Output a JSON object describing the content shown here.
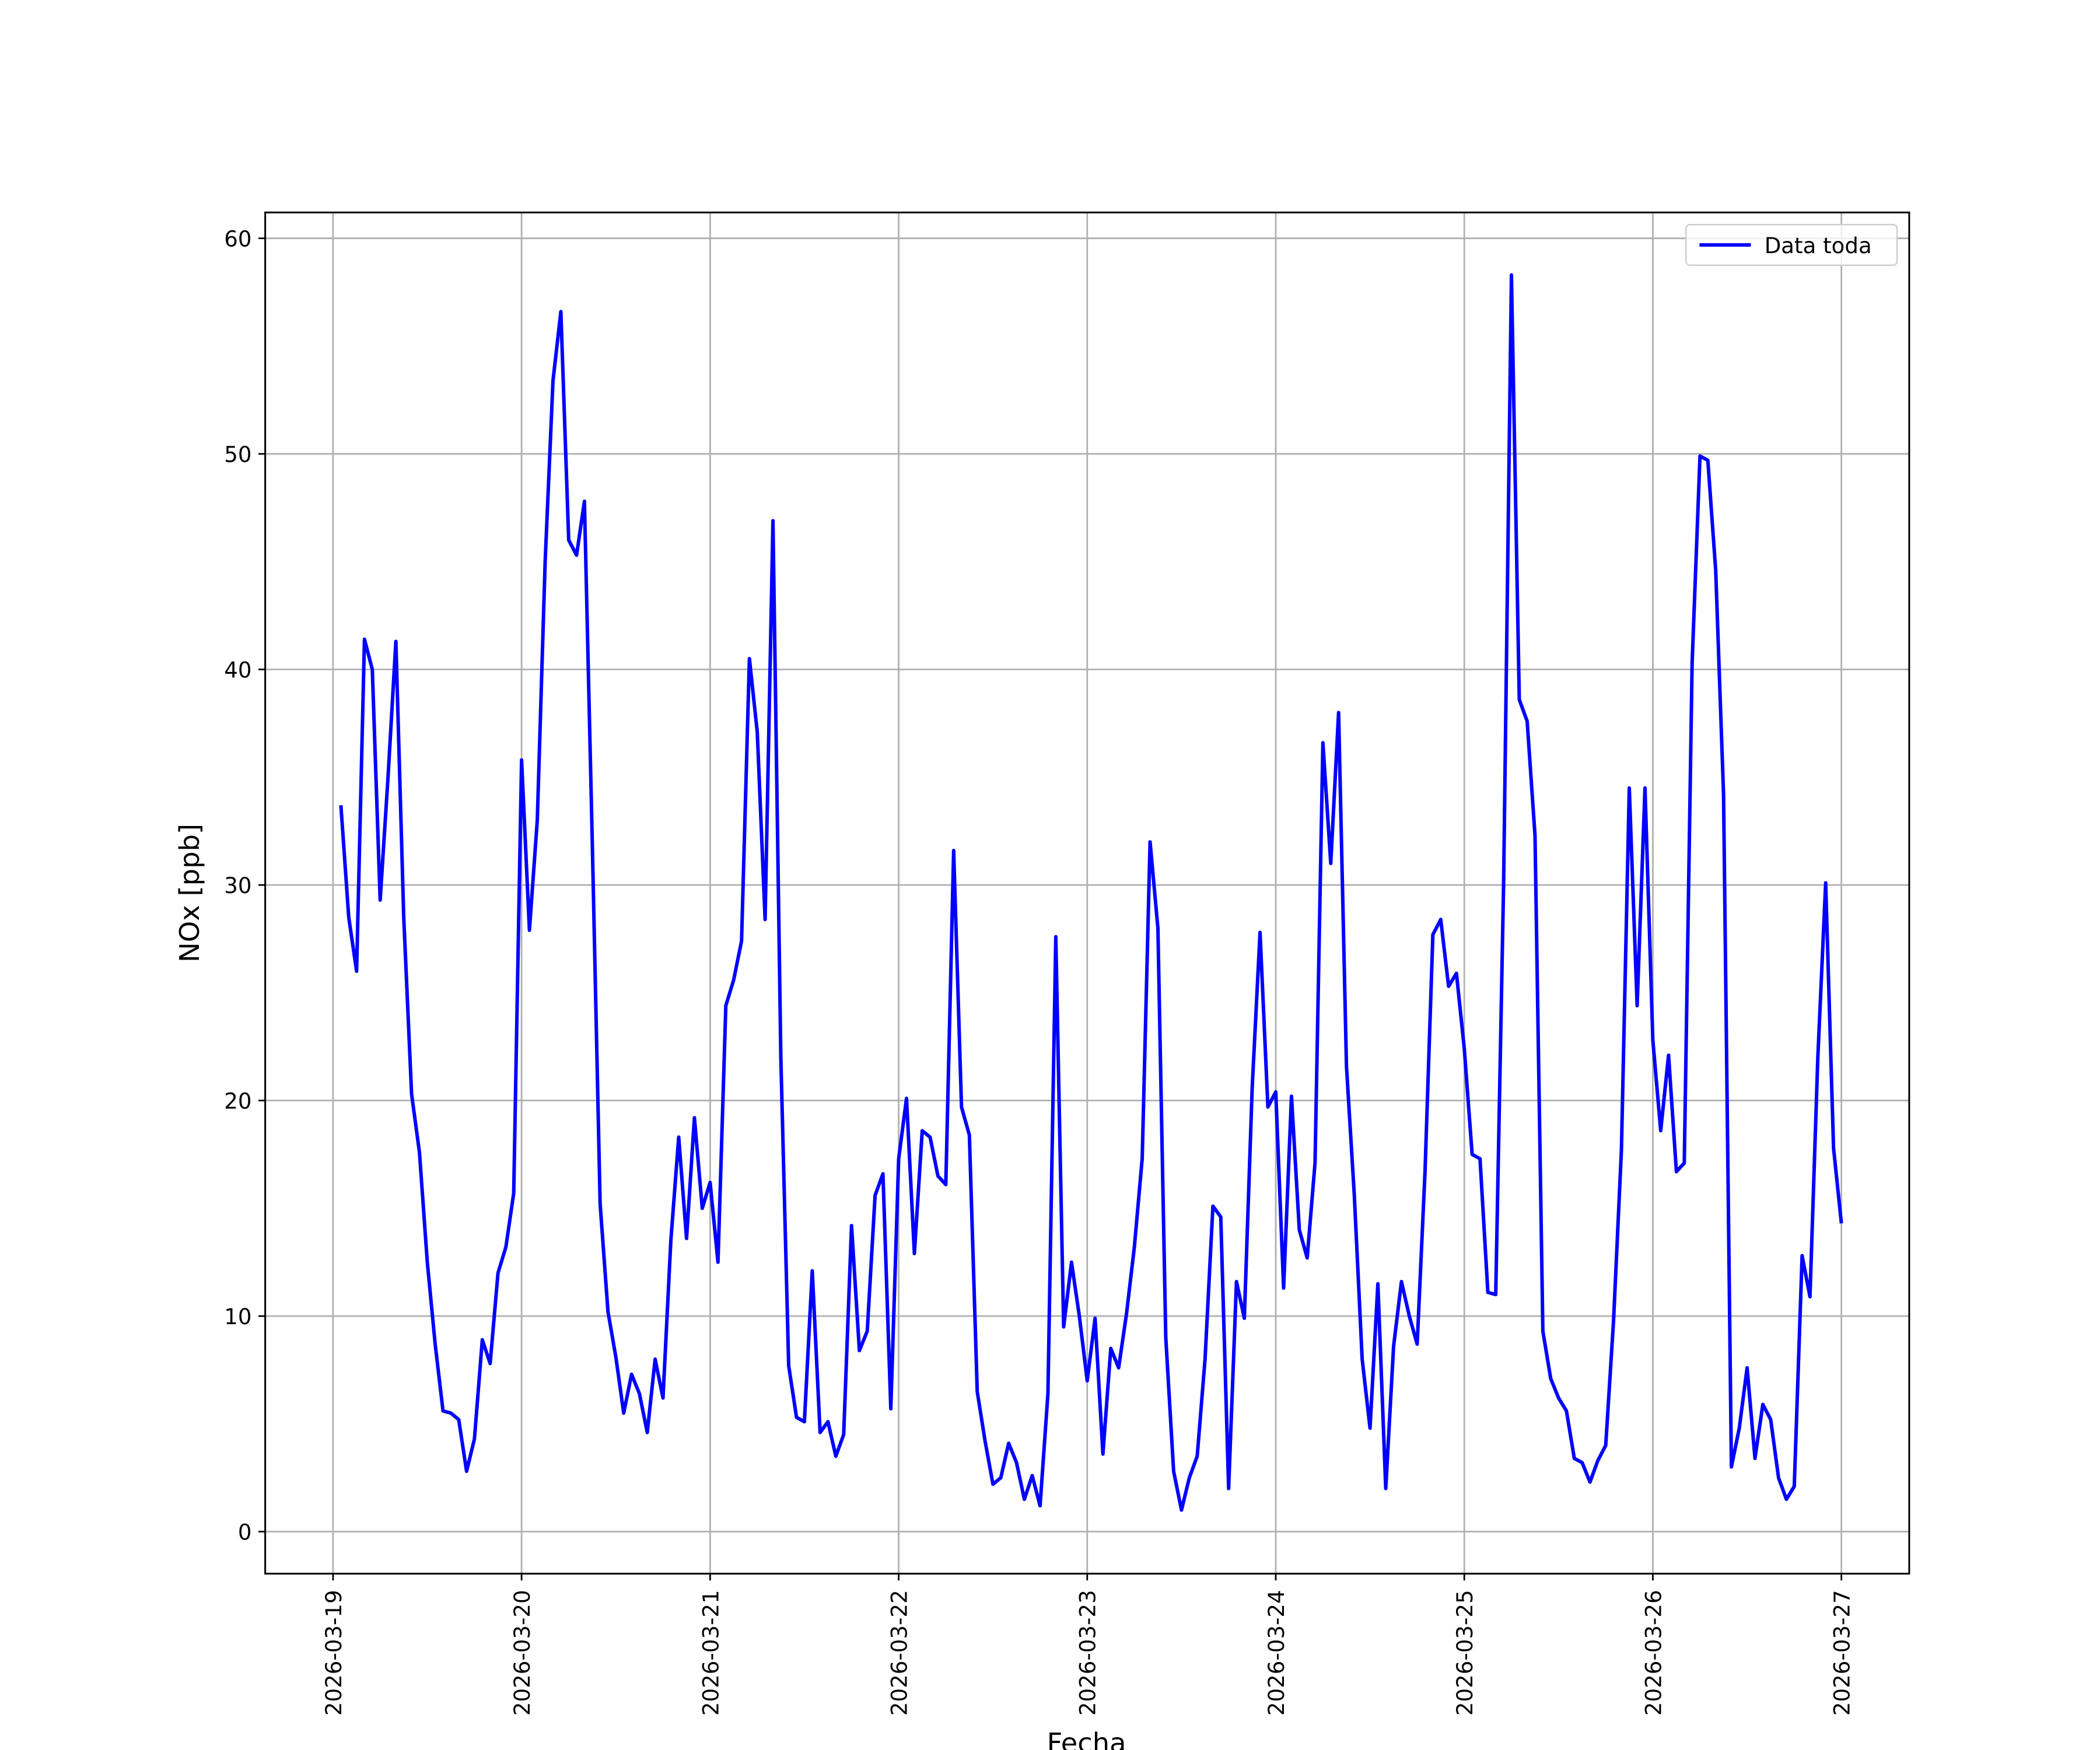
{
  "chart_data": {
    "type": "line",
    "xlabel": "Fecha",
    "ylabel": "NOx [ppb]",
    "x": [
      "2026-03-19 01:00",
      "2026-03-19 02:00",
      "2026-03-19 03:00",
      "2026-03-19 04:00",
      "2026-03-19 05:00",
      "2026-03-19 06:00",
      "2026-03-19 07:00",
      "2026-03-19 08:00",
      "2026-03-19 09:00",
      "2026-03-19 10:00",
      "2026-03-19 11:00",
      "2026-03-19 12:00",
      "2026-03-19 13:00",
      "2026-03-19 14:00",
      "2026-03-19 15:00",
      "2026-03-19 16:00",
      "2026-03-19 17:00",
      "2026-03-19 18:00",
      "2026-03-19 19:00",
      "2026-03-19 20:00",
      "2026-03-19 21:00",
      "2026-03-19 22:00",
      "2026-03-19 23:00",
      "2026-03-20 00:00",
      "2026-03-20 01:00",
      "2026-03-20 02:00",
      "2026-03-20 03:00",
      "2026-03-20 04:00",
      "2026-03-20 05:00",
      "2026-03-20 06:00",
      "2026-03-20 07:00",
      "2026-03-20 08:00",
      "2026-03-20 09:00",
      "2026-03-20 10:00",
      "2026-03-20 11:00",
      "2026-03-20 12:00",
      "2026-03-20 13:00",
      "2026-03-20 14:00",
      "2026-03-20 15:00",
      "2026-03-20 16:00",
      "2026-03-20 17:00",
      "2026-03-20 18:00",
      "2026-03-20 19:00",
      "2026-03-20 20:00",
      "2026-03-20 21:00",
      "2026-03-20 22:00",
      "2026-03-20 23:00",
      "2026-03-21 00:00",
      "2026-03-21 01:00",
      "2026-03-21 02:00",
      "2026-03-21 03:00",
      "2026-03-21 04:00",
      "2026-03-21 05:00",
      "2026-03-21 06:00",
      "2026-03-21 07:00",
      "2026-03-21 08:00",
      "2026-03-21 09:00",
      "2026-03-21 10:00",
      "2026-03-21 11:00",
      "2026-03-21 12:00",
      "2026-03-21 13:00",
      "2026-03-21 14:00",
      "2026-03-21 15:00",
      "2026-03-21 16:00",
      "2026-03-21 17:00",
      "2026-03-21 18:00",
      "2026-03-21 19:00",
      "2026-03-21 20:00",
      "2026-03-21 21:00",
      "2026-03-21 22:00",
      "2026-03-21 23:00",
      "2026-03-22 00:00",
      "2026-03-22 01:00",
      "2026-03-22 02:00",
      "2026-03-22 03:00",
      "2026-03-22 04:00",
      "2026-03-22 05:00",
      "2026-03-22 06:00",
      "2026-03-22 07:00",
      "2026-03-22 08:00",
      "2026-03-22 09:00",
      "2026-03-22 10:00",
      "2026-03-22 11:00",
      "2026-03-22 12:00",
      "2026-03-22 13:00",
      "2026-03-22 14:00",
      "2026-03-22 15:00",
      "2026-03-22 16:00",
      "2026-03-22 17:00",
      "2026-03-22 18:00",
      "2026-03-22 19:00",
      "2026-03-22 20:00",
      "2026-03-22 21:00",
      "2026-03-22 22:00",
      "2026-03-22 23:00",
      "2026-03-23 00:00",
      "2026-03-23 01:00",
      "2026-03-23 02:00",
      "2026-03-23 03:00",
      "2026-03-23 04:00",
      "2026-03-23 05:00",
      "2026-03-23 06:00",
      "2026-03-23 07:00",
      "2026-03-23 08:00",
      "2026-03-23 09:00",
      "2026-03-23 10:00",
      "2026-03-23 11:00",
      "2026-03-23 12:00",
      "2026-03-23 13:00",
      "2026-03-23 14:00",
      "2026-03-23 15:00",
      "2026-03-23 16:00",
      "2026-03-23 17:00",
      "2026-03-23 18:00",
      "2026-03-23 19:00",
      "2026-03-23 20:00",
      "2026-03-23 21:00",
      "2026-03-23 22:00",
      "2026-03-23 23:00",
      "2026-03-24 00:00",
      "2026-03-24 01:00",
      "2026-03-24 02:00",
      "2026-03-24 03:00",
      "2026-03-24 04:00",
      "2026-03-24 05:00",
      "2026-03-24 06:00",
      "2026-03-24 07:00",
      "2026-03-24 08:00",
      "2026-03-24 09:00",
      "2026-03-24 10:00",
      "2026-03-24 11:00",
      "2026-03-24 12:00",
      "2026-03-24 13:00",
      "2026-03-24 14:00",
      "2026-03-24 15:00",
      "2026-03-24 16:00",
      "2026-03-24 17:00",
      "2026-03-24 18:00",
      "2026-03-24 19:00",
      "2026-03-24 20:00",
      "2026-03-24 21:00",
      "2026-03-24 22:00",
      "2026-03-24 23:00",
      "2026-03-25 00:00",
      "2026-03-25 01:00",
      "2026-03-25 02:00",
      "2026-03-25 03:00",
      "2026-03-25 04:00",
      "2026-03-25 05:00",
      "2026-03-25 06:00",
      "2026-03-25 07:00",
      "2026-03-25 08:00",
      "2026-03-25 09:00",
      "2026-03-25 10:00",
      "2026-03-25 11:00",
      "2026-03-25 12:00",
      "2026-03-25 13:00",
      "2026-03-25 14:00",
      "2026-03-25 15:00",
      "2026-03-25 16:00",
      "2026-03-25 17:00",
      "2026-03-25 18:00",
      "2026-03-25 19:00",
      "2026-03-25 20:00",
      "2026-03-25 21:00",
      "2026-03-25 22:00",
      "2026-03-25 23:00",
      "2026-03-26 00:00",
      "2026-03-26 01:00",
      "2026-03-26 02:00",
      "2026-03-26 03:00",
      "2026-03-26 04:00",
      "2026-03-26 05:00",
      "2026-03-26 06:00",
      "2026-03-26 07:00",
      "2026-03-26 08:00",
      "2026-03-26 09:00",
      "2026-03-26 10:00",
      "2026-03-26 11:00",
      "2026-03-26 12:00",
      "2026-03-26 13:00",
      "2026-03-26 14:00",
      "2026-03-26 15:00",
      "2026-03-26 16:00",
      "2026-03-26 17:00",
      "2026-03-26 18:00",
      "2026-03-26 19:00",
      "2026-03-26 20:00",
      "2026-03-26 21:00",
      "2026-03-26 22:00",
      "2026-03-26 23:00",
      "2026-03-27 00:00"
    ],
    "series": [
      {
        "name": "Data toda",
        "color": "#0000ff",
        "values": [
          33.7,
          28.5,
          26.0,
          41.4,
          40.0,
          29.3,
          35.0,
          41.3,
          28.5,
          20.3,
          17.6,
          12.5,
          8.7,
          5.6,
          5.5,
          5.2,
          2.8,
          4.3,
          8.9,
          7.8,
          12.0,
          13.2,
          15.7,
          35.8,
          27.9,
          33.0,
          45.0,
          53.4,
          56.6,
          46.0,
          45.3,
          47.8,
          32.0,
          15.2,
          10.2,
          8.1,
          5.5,
          7.3,
          6.4,
          4.6,
          8.0,
          6.2,
          13.5,
          18.3,
          13.6,
          19.2,
          15.0,
          16.2,
          12.5,
          24.4,
          25.6,
          27.4,
          40.5,
          37.1,
          28.4,
          46.9,
          22.0,
          7.7,
          5.3,
          5.1,
          12.1,
          4.6,
          5.1,
          3.5,
          4.5,
          14.2,
          8.4,
          9.3,
          15.6,
          16.6,
          5.7,
          17.3,
          20.1,
          12.9,
          18.6,
          18.3,
          16.5,
          16.1,
          31.6,
          19.7,
          18.4,
          6.5,
          4.2,
          2.2,
          2.5,
          4.1,
          3.2,
          1.5,
          2.6,
          1.2,
          6.4,
          27.6,
          9.5,
          12.5,
          10.0,
          7.0,
          9.9,
          3.6,
          8.5,
          7.6,
          10.1,
          13.2,
          17.3,
          32.0,
          28.0,
          9.0,
          2.8,
          1.0,
          2.5,
          3.5,
          8.0,
          15.1,
          14.6,
          2.0,
          11.6,
          9.9,
          20.6,
          27.8,
          19.7,
          20.4,
          11.3,
          20.2,
          14.0,
          12.7,
          17.1,
          36.6,
          31.0,
          38.0,
          21.6,
          15.6,
          8.0,
          4.8,
          11.5,
          2.0,
          8.6,
          11.6,
          10.0,
          8.7,
          16.7,
          27.7,
          28.4,
          25.3,
          25.9,
          22.4,
          17.5,
          17.3,
          11.1,
          11.0,
          30.0,
          58.3,
          38.6,
          37.6,
          32.3,
          9.3,
          7.1,
          6.2,
          5.6,
          3.4,
          3.2,
          2.3,
          3.3,
          4.0,
          9.8,
          17.7,
          34.5,
          24.4,
          34.5,
          22.8,
          18.6,
          22.1,
          16.7,
          17.1,
          40.3,
          49.9,
          49.7,
          44.6,
          34.2,
          3.0,
          4.8,
          7.6,
          3.4,
          5.9,
          5.2,
          2.5,
          1.5,
          2.1,
          12.8,
          10.9,
          22.0,
          30.1,
          17.8,
          14.3
        ]
      }
    ],
    "xlim": [
      "2026-03-18 15:22",
      "2026-03-27 08:38"
    ],
    "xticks": [
      "2026-03-19",
      "2026-03-20",
      "2026-03-21",
      "2026-03-22",
      "2026-03-23",
      "2026-03-24",
      "2026-03-25",
      "2026-03-26",
      "2026-03-27"
    ],
    "ylim": [
      -1.95,
      61.2
    ],
    "yticks": [
      0,
      10,
      20,
      30,
      40,
      50,
      60
    ],
    "grid": true,
    "legend": "upper right"
  }
}
